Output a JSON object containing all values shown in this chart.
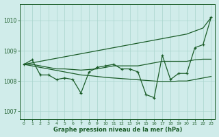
{
  "xlabel": "Graphe pression niveau de la mer (hPa)",
  "ylim": [
    1006.75,
    1010.55
  ],
  "xlim": [
    -0.5,
    23.5
  ],
  "yticks": [
    1007,
    1008,
    1009,
    1010
  ],
  "xticks": [
    0,
    1,
    2,
    3,
    4,
    5,
    6,
    7,
    8,
    9,
    10,
    11,
    12,
    13,
    14,
    15,
    16,
    17,
    18,
    19,
    20,
    21,
    22,
    23
  ],
  "bg_color": "#d0ecea",
  "grid_color": "#a8d4cc",
  "line_color": "#1a5c28",
  "line_zigzag": [
    1008.55,
    1008.7,
    1008.2,
    1008.2,
    1008.05,
    1008.1,
    1008.05,
    1007.6,
    1008.3,
    1008.45,
    1008.5,
    1008.55,
    1008.4,
    1008.4,
    1008.3,
    1007.55,
    1007.45,
    1008.85,
    1008.05,
    1008.25,
    1008.25,
    1009.1,
    1009.2,
    1010.1
  ],
  "line_diagonal": [
    1008.55,
    1008.6,
    1008.65,
    1008.7,
    1008.75,
    1008.8,
    1008.85,
    1008.9,
    1008.95,
    1009.0,
    1009.05,
    1009.1,
    1009.15,
    1009.2,
    1009.25,
    1009.3,
    1009.35,
    1009.4,
    1009.45,
    1009.5,
    1009.55,
    1009.65,
    1009.75,
    1010.1
  ],
  "line_flat_upper": [
    1008.55,
    1008.55,
    1008.5,
    1008.45,
    1008.4,
    1008.4,
    1008.38,
    1008.36,
    1008.38,
    1008.4,
    1008.45,
    1008.5,
    1008.5,
    1008.5,
    1008.5,
    1008.55,
    1008.6,
    1008.65,
    1008.65,
    1008.65,
    1008.65,
    1008.7,
    1008.72,
    1008.72
  ],
  "line_flat_lower": [
    1008.55,
    1008.5,
    1008.45,
    1008.4,
    1008.35,
    1008.3,
    1008.25,
    1008.2,
    1008.18,
    1008.15,
    1008.12,
    1008.1,
    1008.08,
    1008.06,
    1008.04,
    1008.02,
    1008.0,
    1007.98,
    1007.98,
    1008.0,
    1008.0,
    1008.05,
    1008.1,
    1008.15
  ]
}
